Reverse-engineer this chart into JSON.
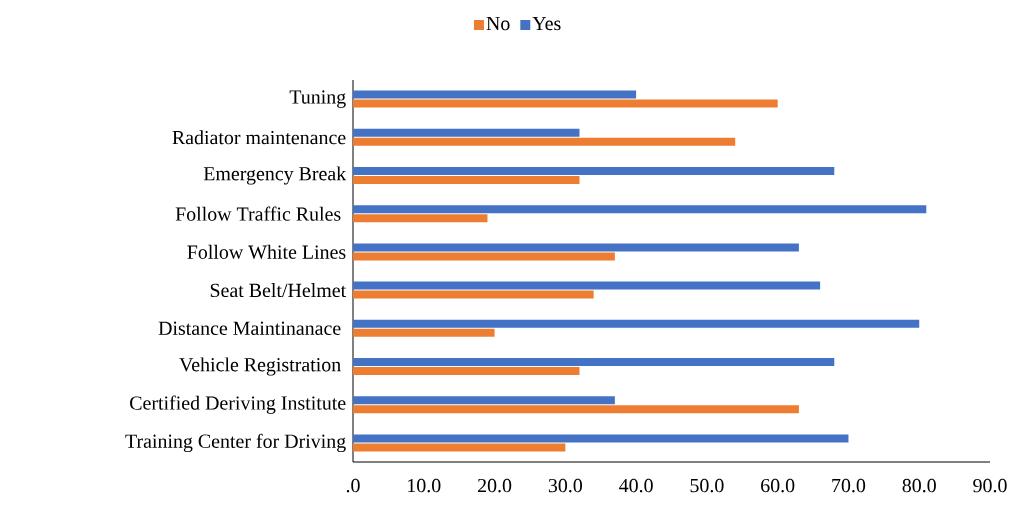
{
  "chart_data": {
    "type": "bar",
    "orientation": "horizontal",
    "legend": "top",
    "categories": [
      "Tuning",
      "Radiator maintenance",
      "Emergency Break",
      "Follow Traffic Rules ",
      "Follow White Lines",
      "Seat Belt/Helmet",
      "Distance Maintinanace ",
      "Vehicle Registration ",
      "Certified Deriving Institute",
      "Training Center for Driving"
    ],
    "series": [
      {
        "name": "No",
        "color": "#ed7d31",
        "values": [
          60,
          54,
          32,
          19,
          37,
          34,
          20,
          32,
          63,
          30
        ]
      },
      {
        "name": "Yes",
        "color": "#4472c4",
        "values": [
          40,
          32,
          68,
          81,
          63,
          66,
          80,
          68,
          37,
          70
        ]
      }
    ],
    "xlim": [
      0,
      90
    ],
    "xticks": [
      {
        "value": 0,
        "label": ".0"
      },
      {
        "value": 10,
        "label": "10.0"
      },
      {
        "value": 20,
        "label": "20.0"
      },
      {
        "value": 30,
        "label": "30.0"
      },
      {
        "value": 40,
        "label": "40.0"
      },
      {
        "value": 50,
        "label": "50.0"
      },
      {
        "value": 60,
        "label": "60.0"
      },
      {
        "value": 70,
        "label": "70.0"
      },
      {
        "value": 80,
        "label": "80.0"
      },
      {
        "value": 90,
        "label": "90.0"
      }
    ],
    "grid": false
  }
}
